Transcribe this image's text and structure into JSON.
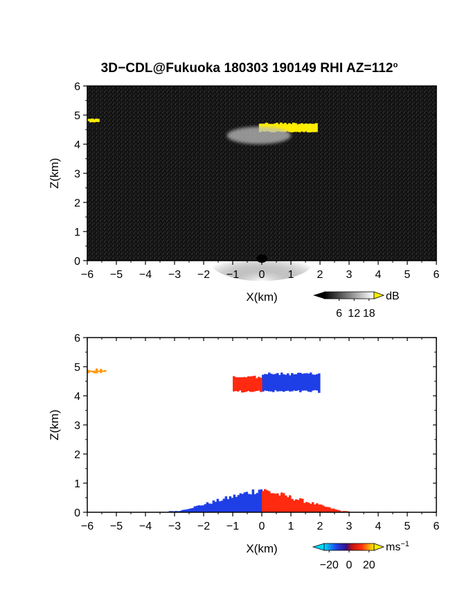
{
  "title": {
    "main": "3D−CDL@Fukuoka 180303 190149 RHI AZ=112",
    "superscript": "o"
  },
  "colors": {
    "frame": "#000000",
    "reflectivity_background": "#121212",
    "echo_yellow": "#ffee00",
    "echo_light": "#bdbdbd",
    "doppler_blue": "#1f3fe6",
    "doppler_red": "#ff2a10",
    "doppler_orange": "#ff9a10"
  },
  "chart_data": [
    {
      "type": "heatmap",
      "field": "reflectivity",
      "xlabel": "X(km)",
      "ylabel": "Z(km)",
      "xlim": [
        -6,
        6
      ],
      "ylim": [
        0,
        6
      ],
      "x_ticks": [
        "−6",
        "−5",
        "−4",
        "−3",
        "−2",
        "−1",
        "0",
        "1",
        "2",
        "3",
        "4",
        "5",
        "6"
      ],
      "y_ticks": [
        "0",
        "1",
        "2",
        "3",
        "4",
        "5",
        "6"
      ],
      "colorbar": {
        "unit": "dB",
        "ticks": [
          "6",
          "12",
          "18"
        ],
        "range": [
          0,
          20
        ]
      },
      "features": [
        {
          "name": "cloud-layer-strong",
          "x": [
            -0.1,
            1.9
          ],
          "z": [
            4.4,
            4.75
          ],
          "value_db": 19
        },
        {
          "name": "cloud-layer-weak",
          "x": [
            -1.2,
            1.0
          ],
          "z": [
            4.0,
            4.6
          ],
          "value_db": 10
        },
        {
          "name": "edge-echo",
          "x": [
            -6.0,
            -5.6
          ],
          "z": [
            4.75,
            4.9
          ],
          "value_db": 19
        },
        {
          "name": "near-ground-clutter",
          "x": [
            -1.8,
            1.8
          ],
          "z": [
            0.0,
            0.7
          ],
          "value_db": 8
        }
      ]
    },
    {
      "type": "heatmap",
      "field": "doppler_velocity",
      "xlabel": "X(km)",
      "ylabel": "Z(km)",
      "xlim": [
        -6,
        6
      ],
      "ylim": [
        0,
        6
      ],
      "x_ticks": [
        "−6",
        "−5",
        "−4",
        "−3",
        "−2",
        "−1",
        "0",
        "1",
        "2",
        "3",
        "4",
        "5",
        "6"
      ],
      "y_ticks": [
        "0",
        "1",
        "2",
        "3",
        "4",
        "5",
        "6"
      ],
      "colorbar": {
        "unit": "ms",
        "unit_exponent": "−1",
        "ticks": [
          "−20",
          "0",
          "20"
        ],
        "range": [
          -25,
          25
        ]
      },
      "features": [
        {
          "name": "cloud-receding",
          "x": [
            0.0,
            2.0
          ],
          "z": [
            4.1,
            4.8
          ],
          "velocity_ms": -20
        },
        {
          "name": "cloud-approaching",
          "x": [
            -1.0,
            0.0
          ],
          "z": [
            4.1,
            4.7
          ],
          "velocity_ms": 18
        },
        {
          "name": "ground-receding",
          "x": [
            -3.2,
            0.0
          ],
          "z": [
            0.0,
            0.9
          ],
          "velocity_ms": -20
        },
        {
          "name": "ground-approaching",
          "x": [
            0.0,
            3.0
          ],
          "z": [
            0.0,
            0.85
          ],
          "velocity_ms": 18
        },
        {
          "name": "edge-echo",
          "x": [
            -6.0,
            -5.4
          ],
          "z": [
            4.75,
            4.95
          ],
          "velocity_ms": 22
        }
      ]
    }
  ]
}
